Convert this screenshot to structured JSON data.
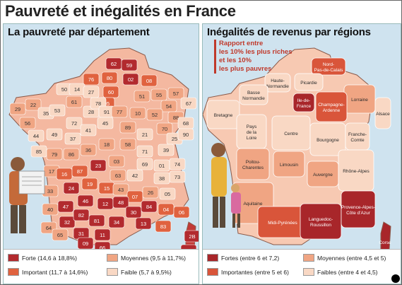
{
  "title": "Pauvreté et inégalités en France",
  "left": {
    "title": "La pauvreté par département",
    "legend": [
      {
        "label": "Forte (14,6 à 18,8%)",
        "color": "#b22a2e"
      },
      {
        "label": "Important (11,7 à 14,6%)",
        "color": "#e0623f"
      },
      {
        "label": "Moyennes (9,5 à 11,7%)",
        "color": "#f0a583"
      },
      {
        "label": "Faible (5,7 à 9,5%)",
        "color": "#f9d8c4"
      }
    ],
    "departments": [
      "62",
      "59",
      "80",
      "02",
      "08",
      "76",
      "60",
      "50",
      "14",
      "27",
      "95",
      "51",
      "55",
      "57",
      "67",
      "54",
      "88",
      "29",
      "22",
      "35",
      "53",
      "61",
      "28",
      "78",
      "91",
      "77",
      "10",
      "52",
      "68",
      "56",
      "72",
      "44",
      "49",
      "37",
      "41",
      "45",
      "89",
      "21",
      "70",
      "25",
      "39",
      "90",
      "85",
      "79",
      "86",
      "36",
      "18",
      "58",
      "71",
      "01",
      "74",
      "73",
      "17",
      "16",
      "87",
      "23",
      "03",
      "63",
      "42",
      "69",
      "38",
      "33",
      "24",
      "19",
      "15",
      "43",
      "07",
      "26",
      "05",
      "40",
      "47",
      "46",
      "12",
      "48",
      "30",
      "84",
      "04",
      "06",
      "64",
      "32",
      "82",
      "81",
      "34",
      "13",
      "83",
      "65",
      "31",
      "11",
      "09",
      "66",
      "2B",
      "2A"
    ]
  },
  "right": {
    "title": "Inégalités de revenus par régions",
    "note": [
      "Rapport entre",
      "les 10% les plus riches",
      "et les 10%",
      "les plus pauvres"
    ],
    "legend": [
      {
        "label": "Fortes (entre 6 et 7,2)",
        "color": "#a8262a"
      },
      {
        "label": "Importantes (entre 5 et 6)",
        "color": "#d9553a"
      },
      {
        "label": "Moyennes (entre 4,5 et 5)",
        "color": "#f0a583"
      },
      {
        "label": "Faibles (entre 4 et 4,5)",
        "color": "#f9d8c4"
      }
    ],
    "regions": [
      {
        "name": "Nord-Pas-de-Calais",
        "lines": [
          "Nord-",
          "Pas-de-Calais"
        ],
        "level": 1
      },
      {
        "name": "Haute-Normandie",
        "lines": [
          "Haute-",
          "Normandie"
        ],
        "level": 3
      },
      {
        "name": "Picardie",
        "lines": [
          "Picardie"
        ],
        "level": 3
      },
      {
        "name": "Basse Normandie",
        "lines": [
          "Basse",
          "Normandie"
        ],
        "level": 3
      },
      {
        "name": "Île-de-France",
        "lines": [
          "Ile-de-",
          "France"
        ],
        "level": 0
      },
      {
        "name": "Lorraine",
        "lines": [
          "Lorraine"
        ],
        "level": 2
      },
      {
        "name": "Champagne-Ardenne",
        "lines": [
          "Champagne-",
          "Ardenne"
        ],
        "level": 1
      },
      {
        "name": "Alsace",
        "lines": [
          "Alsace"
        ],
        "level": 3
      },
      {
        "name": "Bretagne",
        "lines": [
          "Bretagne"
        ],
        "level": 3
      },
      {
        "name": "Pays de la Loire",
        "lines": [
          "Pays",
          "de la",
          "Loire"
        ],
        "level": 3
      },
      {
        "name": "Centre",
        "lines": [
          "Centre"
        ],
        "level": 3
      },
      {
        "name": "Bourgogne",
        "lines": [
          "Bourgogne"
        ],
        "level": 3
      },
      {
        "name": "Franche-Comte",
        "lines": [
          "Franche-",
          "Comte"
        ],
        "level": 3
      },
      {
        "name": "Poitou-Charentes",
        "lines": [
          "Poitou-",
          "Charentes"
        ],
        "level": 2
      },
      {
        "name": "Limousin",
        "lines": [
          "Limousin"
        ],
        "level": 2
      },
      {
        "name": "Auvergne",
        "lines": [
          "Auvergne"
        ],
        "level": 2
      },
      {
        "name": "Rhône-Alpes",
        "lines": [
          "Rhône-Alpes"
        ],
        "level": 3
      },
      {
        "name": "Aquitaine",
        "lines": [
          "Aquitaine"
        ],
        "level": 2
      },
      {
        "name": "Midi-Pyrénées",
        "lines": [
          "Midi-Pyrénées"
        ],
        "level": 1
      },
      {
        "name": "Languedoc-Roussillon",
        "lines": [
          "Languedoc-",
          "Roussillon"
        ],
        "level": 0
      },
      {
        "name": "Provence-Alpes-Côte d'Azur",
        "lines": [
          "Provence-Alpes-",
          "Côte d'Azur"
        ],
        "level": 0
      },
      {
        "name": "Corse",
        "lines": [
          "Corse"
        ],
        "level": 0
      }
    ]
  }
}
